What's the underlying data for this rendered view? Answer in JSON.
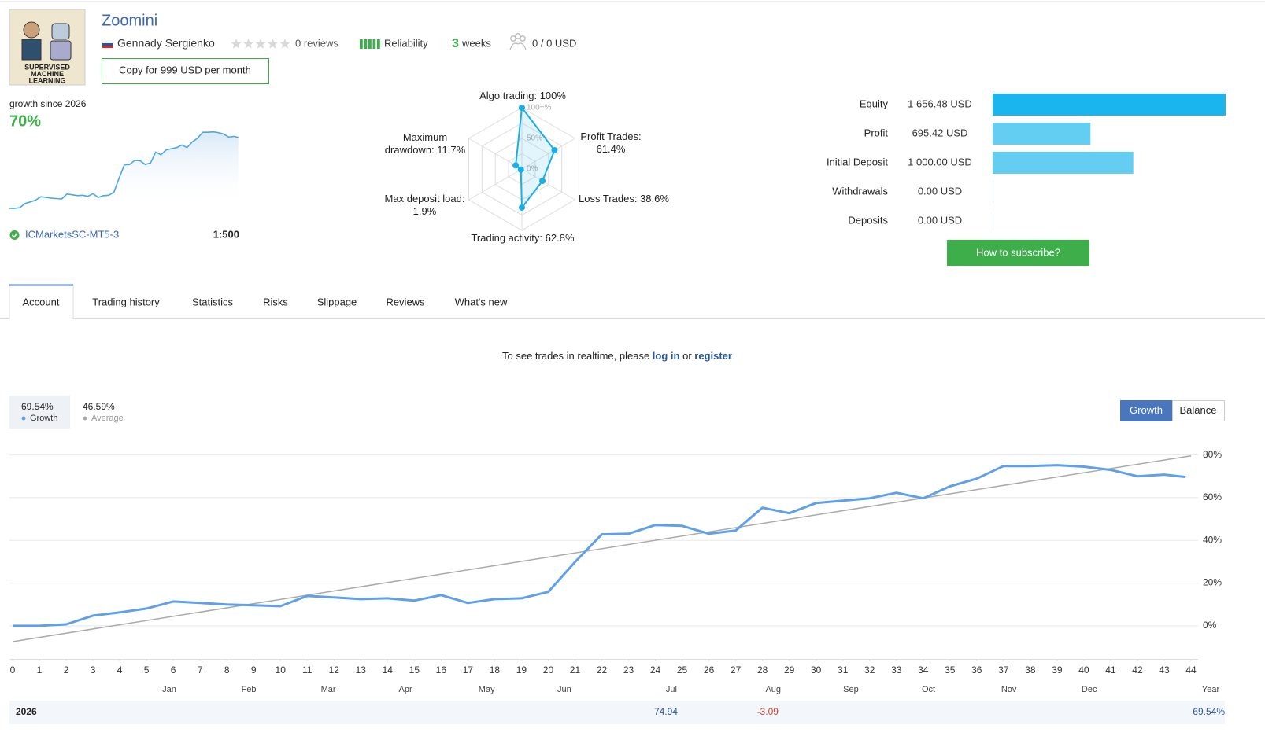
{
  "header": {
    "logo_text": [
      "SUPERVISED",
      "MACHINE",
      "LEARNING"
    ],
    "title": "Zoomini",
    "author": "Gennady Sergienko",
    "reviews": "0 reviews",
    "reliability": "Reliability",
    "weeks": 3,
    "weeks_unit": "weeks",
    "subscribers": "0 / 0 USD",
    "copy_button": "Copy for 999 USD per month"
  },
  "summary": {
    "growth_label": "growth since 2026",
    "growth_value": "70%",
    "broker": "ICMarketsSC-MT5-3",
    "leverage": "1:500"
  },
  "radar": {
    "rings": [
      {
        "value": 100,
        "label": "100+%"
      },
      {
        "value": 50,
        "label": "50%"
      },
      {
        "value": 0,
        "label": "0%"
      }
    ],
    "color": "#1aaee8",
    "axes": [
      {
        "name": "Algo trading:",
        "value": 100,
        "value_label": "100%"
      },
      {
        "name": "Profit Trades:",
        "value": 61.4,
        "value_label": "61.4%"
      },
      {
        "name": "Loss Trades:",
        "value": 38.6,
        "value_label": "38.6%"
      },
      {
        "name": "Trading activity:",
        "value": 62.8,
        "value_label": "62.8%"
      },
      {
        "name": "Max deposit load:",
        "value": 1.9,
        "value_label": "1.9%"
      },
      {
        "name": "Maximum drawdown:",
        "value": 11.7,
        "value_label": "11.7%"
      }
    ]
  },
  "balance": {
    "rows": [
      {
        "name": "Equity",
        "value": 1656.48,
        "value_label": "1 656.48 USD",
        "color": "#1ab5ef"
      },
      {
        "name": "Profit",
        "value": 695.42,
        "value_label": "695.42 USD",
        "color": "#63cdf2"
      },
      {
        "name": "Initial Deposit",
        "value": 1000,
        "value_label": "1 000.00 USD",
        "color": "#63cdf2"
      },
      {
        "name": "Withdrawals",
        "value": 0,
        "value_label": "0.00 USD",
        "color": "#63cdf2"
      },
      {
        "name": "Deposits",
        "value": 0,
        "value_label": "0.00 USD",
        "color": "#63cdf2"
      }
    ],
    "button": "How to subscribe?"
  },
  "tabs": {
    "items": [
      "Account",
      "Trading history",
      "Statistics",
      "Risks",
      "Slippage",
      "Reviews",
      "What's new"
    ],
    "active": 0
  },
  "notice": {
    "text": "To see trades in realtime, please",
    "login": "log in",
    "or": "or",
    "register": "register"
  },
  "chart_data": {
    "type": "line",
    "modes": [
      "Growth",
      "Balance"
    ],
    "active_mode": 0,
    "grid": true,
    "xlim": [
      0,
      44
    ],
    "xticks": [
      0,
      1,
      2,
      3,
      4,
      5,
      6,
      7,
      8,
      9,
      10,
      11,
      12,
      13,
      14,
      15,
      16,
      17,
      18,
      19,
      20,
      21,
      22,
      23,
      24,
      25,
      26,
      27,
      28,
      29,
      30,
      31,
      32,
      33,
      34,
      35,
      36,
      37,
      38,
      39,
      40,
      41,
      42,
      43,
      44
    ],
    "ylim": [
      -15.5,
      85
    ],
    "yticks": [
      {
        "value": 0,
        "label": "0%"
      },
      {
        "value": 20,
        "label": "20%"
      },
      {
        "value": 40,
        "label": "40%"
      },
      {
        "value": 60,
        "label": "60%"
      },
      {
        "value": 80,
        "label": "80%"
      }
    ],
    "month_ticks": [
      {
        "value": 5.85,
        "label": "Jan"
      },
      {
        "value": 8.82,
        "label": "Feb"
      },
      {
        "value": 11.79,
        "label": "Mar"
      },
      {
        "value": 14.67,
        "label": "Apr"
      },
      {
        "value": 17.7,
        "label": "May"
      },
      {
        "value": 20.6,
        "label": "Jun"
      },
      {
        "value": 24.6,
        "label": "Jul"
      },
      {
        "value": 28.4,
        "label": "Aug"
      },
      {
        "value": 31.3,
        "label": "Sep"
      },
      {
        "value": 34.2,
        "label": "Oct"
      },
      {
        "value": 37.2,
        "label": "Nov"
      },
      {
        "value": 40.2,
        "label": "Dec"
      }
    ],
    "year_label": "Year",
    "year_row": {
      "year": "2026",
      "cells": [
        {
          "month": "Jul",
          "value": 74.94
        },
        {
          "month": "Aug",
          "value": -3.09
        }
      ],
      "total": "69.54%"
    },
    "series": [
      {
        "name": "Growth",
        "legend_label": "69.54%",
        "color": "#5fa0e8",
        "x": [
          0,
          1,
          2,
          3,
          4,
          5,
          6,
          7,
          8,
          9,
          10,
          11,
          12,
          13,
          14,
          15,
          16,
          17,
          18,
          19,
          20,
          21,
          22,
          23,
          24,
          25,
          26,
          27,
          28,
          29,
          30,
          31,
          32,
          33,
          34,
          35,
          36,
          37,
          38,
          39,
          40,
          41,
          42,
          43,
          43.8
        ],
        "values": [
          0,
          0,
          0.7,
          4.8,
          6.3,
          8.1,
          11.4,
          10.7,
          10,
          9.6,
          9.2,
          14,
          13.3,
          12.5,
          12.9,
          11.8,
          14.4,
          10.7,
          12.5,
          12.9,
          15.9,
          29.9,
          42.8,
          43.1,
          47.2,
          46.8,
          43.1,
          44.6,
          55.3,
          52.7,
          57.5,
          58.6,
          59.7,
          62.3,
          59.7,
          65.3,
          68.9,
          74.8,
          74.8,
          75.2,
          74.5,
          73,
          70,
          70.8,
          69.7
        ]
      },
      {
        "name": "Average",
        "legend_label": "46.59%",
        "color": "#aaaaaa",
        "x": [
          0,
          44
        ],
        "values": [
          -7.4,
          79.6
        ]
      }
    ]
  }
}
